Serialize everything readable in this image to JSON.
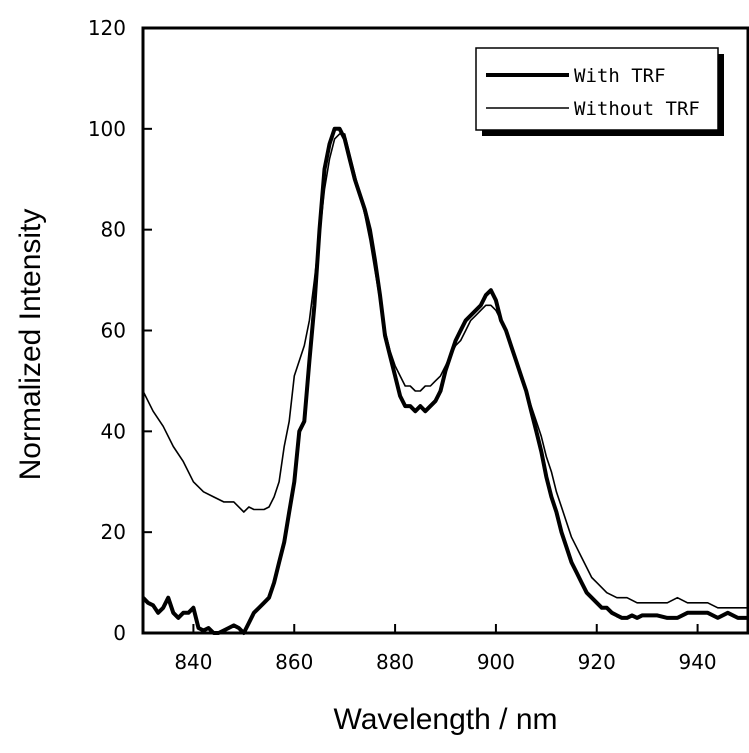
{
  "chart_data": {
    "type": "line",
    "title": "",
    "xlabel": "Wavelength / nm",
    "ylabel": "Normalized Intensity",
    "xlim": [
      830,
      950
    ],
    "ylim": [
      0,
      120
    ],
    "xticks": [
      840,
      860,
      880,
      900,
      920,
      940
    ],
    "yticks": [
      0,
      20,
      40,
      60,
      80,
      100,
      120
    ],
    "grid": false,
    "legend_position": "top-right",
    "series": [
      {
        "name": "With TRF",
        "color": "#000000",
        "style": "thick",
        "x": [
          830,
          831,
          832,
          833,
          834,
          835,
          836,
          837,
          838,
          839,
          840,
          841,
          842,
          843,
          844,
          845,
          846,
          847,
          848,
          849,
          850,
          851,
          852,
          853,
          854,
          855,
          856,
          857,
          858,
          859,
          860,
          861,
          862,
          863,
          864,
          865,
          866,
          867,
          868,
          869,
          870,
          871,
          872,
          873,
          874,
          875,
          876,
          877,
          878,
          879,
          880,
          881,
          882,
          883,
          884,
          885,
          886,
          887,
          888,
          889,
          890,
          891,
          892,
          893,
          894,
          895,
          896,
          897,
          898,
          899,
          900,
          901,
          902,
          903,
          904,
          905,
          906,
          907,
          908,
          909,
          910,
          911,
          912,
          913,
          914,
          915,
          916,
          917,
          918,
          919,
          920,
          921,
          922,
          923,
          924,
          925,
          926,
          927,
          928,
          929,
          930,
          932,
          934,
          936,
          938,
          940,
          942,
          944,
          946,
          948,
          950
        ],
        "values": [
          7,
          6,
          5.5,
          4,
          5,
          7,
          4,
          3,
          4,
          4,
          5,
          1,
          0.5,
          1,
          0,
          0,
          0.5,
          1,
          1.5,
          1,
          0,
          2,
          4,
          5,
          6,
          7,
          10,
          14,
          18,
          24,
          30,
          40,
          42,
          54,
          65,
          80,
          92,
          97,
          100,
          100,
          98,
          94,
          90,
          87,
          84,
          80,
          74,
          67,
          59,
          55,
          51,
          47,
          45,
          45,
          44,
          45,
          44,
          45,
          46,
          48,
          52,
          55,
          58,
          60,
          62,
          63,
          64,
          65,
          67,
          68,
          66,
          62,
          60,
          57,
          54,
          51,
          48,
          44,
          40,
          36,
          31,
          27,
          24,
          20,
          17,
          14,
          12,
          10,
          8,
          7,
          6,
          5,
          5,
          4,
          3.5,
          3,
          3,
          3.5,
          3,
          3.5,
          3.5,
          3.5,
          3,
          3,
          4,
          4,
          4,
          3,
          4,
          3,
          3
        ]
      },
      {
        "name": "Without TRF",
        "color": "#000000",
        "style": "thin",
        "x": [
          830,
          832,
          834,
          836,
          838,
          840,
          842,
          844,
          846,
          848,
          850,
          851,
          852,
          853,
          854,
          855,
          856,
          857,
          858,
          859,
          860,
          861,
          862,
          863,
          864,
          865,
          866,
          867,
          868,
          869,
          870,
          871,
          872,
          873,
          874,
          875,
          876,
          877,
          878,
          879,
          880,
          881,
          882,
          883,
          884,
          885,
          886,
          887,
          888,
          889,
          890,
          891,
          892,
          893,
          894,
          895,
          896,
          897,
          898,
          899,
          900,
          901,
          902,
          903,
          904,
          905,
          906,
          907,
          908,
          909,
          910,
          911,
          912,
          913,
          914,
          915,
          916,
          917,
          918,
          919,
          920,
          922,
          924,
          926,
          928,
          930,
          932,
          934,
          936,
          938,
          940,
          942,
          944,
          946,
          948,
          950
        ],
        "values": [
          48,
          44,
          41,
          37,
          34,
          30,
          28,
          27,
          26,
          26,
          24,
          25,
          24.5,
          24.5,
          24.5,
          25,
          27,
          30,
          37,
          42,
          51,
          54,
          57,
          62,
          70,
          79,
          88,
          94,
          98,
          99,
          99,
          95,
          91,
          87,
          83,
          78,
          72,
          66,
          60,
          56,
          53,
          51,
          49,
          49,
          48,
          48,
          49,
          49,
          50,
          51,
          53,
          55,
          57,
          58,
          60,
          62,
          63,
          64,
          65,
          65,
          64,
          62,
          60,
          57,
          54,
          51,
          48,
          45,
          42,
          39,
          35,
          32,
          28,
          25,
          22,
          19,
          17,
          15,
          13,
          11,
          10,
          8,
          7,
          7,
          6,
          6,
          6,
          6,
          7,
          6,
          6,
          6,
          5,
          5,
          5,
          5
        ]
      }
    ]
  }
}
